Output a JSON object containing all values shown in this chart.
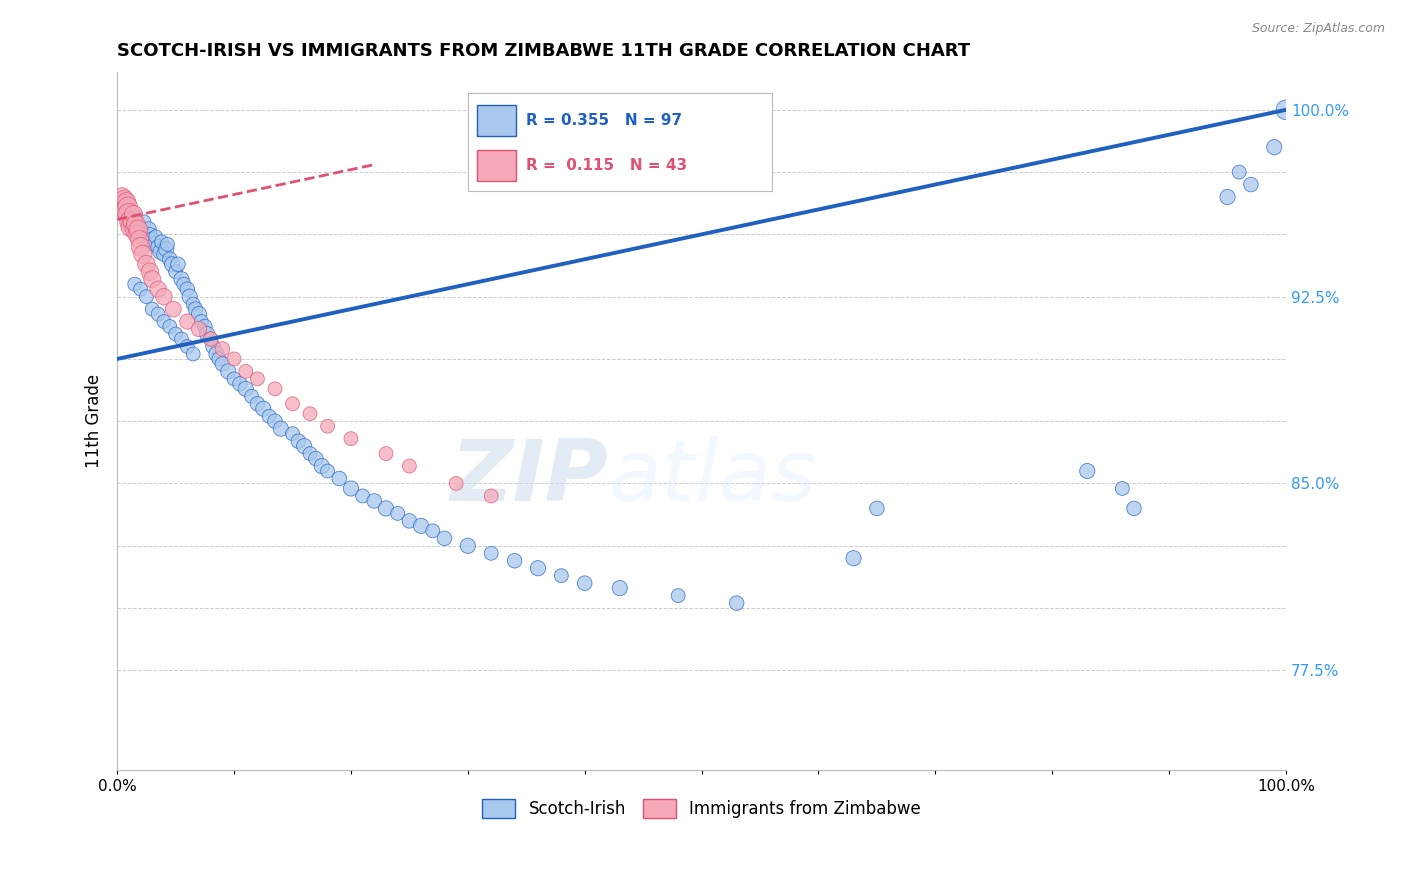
{
  "title": "SCOTCH-IRISH VS IMMIGRANTS FROM ZIMBABWE 11TH GRADE CORRELATION CHART",
  "ylabel": "11th Grade",
  "source": "Source: ZipAtlas.com",
  "xlim": [
    0.0,
    1.0
  ],
  "ylim": [
    0.735,
    1.015
  ],
  "yticks": [
    0.775,
    0.8,
    0.825,
    0.85,
    0.875,
    0.9,
    0.925,
    0.95,
    0.975,
    1.0
  ],
  "ytick_labels": [
    "77.5%",
    "",
    "",
    "85.0%",
    "",
    "",
    "92.5%",
    "",
    "",
    "100.0%"
  ],
  "xticks": [
    0.0,
    0.1,
    0.2,
    0.3,
    0.4,
    0.5,
    0.6,
    0.7,
    0.8,
    0.9,
    1.0
  ],
  "xtick_labels": [
    "0.0%",
    "",
    "",
    "",
    "",
    "",
    "",
    "",
    "",
    "",
    "100.0%"
  ],
  "blue_R": 0.355,
  "blue_N": 97,
  "pink_R": 0.115,
  "pink_N": 43,
  "legend_label_blue": "Scotch-Irish",
  "legend_label_pink": "Immigrants from Zimbabwe",
  "blue_color": "#A8C8EE",
  "pink_color": "#F4A8B8",
  "blue_line_color": "#2060C0",
  "pink_line_color": "#E05070",
  "watermark_zip": "ZIP",
  "watermark_atlas": "atlas",
  "blue_line_x": [
    0.0,
    1.0
  ],
  "blue_line_y": [
    0.9,
    1.0
  ],
  "pink_line_x": [
    0.0,
    0.22
  ],
  "pink_line_y": [
    0.956,
    0.978
  ],
  "blue_x": [
    0.005,
    0.01,
    0.013,
    0.015,
    0.016,
    0.018,
    0.02,
    0.022,
    0.023,
    0.025,
    0.027,
    0.028,
    0.03,
    0.032,
    0.033,
    0.035,
    0.037,
    0.038,
    0.04,
    0.042,
    0.043,
    0.045,
    0.047,
    0.05,
    0.052,
    0.055,
    0.057,
    0.06,
    0.062,
    0.065,
    0.067,
    0.07,
    0.072,
    0.075,
    0.077,
    0.08,
    0.082,
    0.085,
    0.087,
    0.09,
    0.095,
    0.1,
    0.105,
    0.11,
    0.115,
    0.12,
    0.125,
    0.13,
    0.135,
    0.14,
    0.15,
    0.155,
    0.16,
    0.165,
    0.17,
    0.175,
    0.18,
    0.19,
    0.2,
    0.21,
    0.22,
    0.23,
    0.24,
    0.25,
    0.26,
    0.27,
    0.28,
    0.3,
    0.32,
    0.34,
    0.36,
    0.38,
    0.4,
    0.43,
    0.48,
    0.53,
    0.63,
    0.65,
    0.83,
    0.86,
    0.87,
    0.95,
    0.96,
    0.97,
    0.99,
    1.0,
    0.015,
    0.02,
    0.025,
    0.03,
    0.035,
    0.04,
    0.045,
    0.05,
    0.055,
    0.06,
    0.065
  ],
  "blue_y": [
    0.96,
    0.955,
    0.958,
    0.955,
    0.957,
    0.953,
    0.952,
    0.95,
    0.955,
    0.948,
    0.952,
    0.95,
    0.948,
    0.946,
    0.949,
    0.945,
    0.943,
    0.947,
    0.942,
    0.944,
    0.946,
    0.94,
    0.938,
    0.935,
    0.938,
    0.932,
    0.93,
    0.928,
    0.925,
    0.922,
    0.92,
    0.918,
    0.915,
    0.913,
    0.91,
    0.908,
    0.905,
    0.902,
    0.9,
    0.898,
    0.895,
    0.892,
    0.89,
    0.888,
    0.885,
    0.882,
    0.88,
    0.877,
    0.875,
    0.872,
    0.87,
    0.867,
    0.865,
    0.862,
    0.86,
    0.857,
    0.855,
    0.852,
    0.848,
    0.845,
    0.843,
    0.84,
    0.838,
    0.835,
    0.833,
    0.831,
    0.828,
    0.825,
    0.822,
    0.819,
    0.816,
    0.813,
    0.81,
    0.808,
    0.805,
    0.802,
    0.82,
    0.84,
    0.855,
    0.848,
    0.84,
    0.965,
    0.975,
    0.97,
    0.985,
    1.0,
    0.93,
    0.928,
    0.925,
    0.92,
    0.918,
    0.915,
    0.913,
    0.91,
    0.908,
    0.905,
    0.902
  ],
  "blue_sizes": [
    120,
    100,
    110,
    120,
    100,
    110,
    130,
    120,
    100,
    110,
    120,
    100,
    110,
    120,
    100,
    110,
    120,
    100,
    110,
    120,
    100,
    110,
    120,
    100,
    110,
    120,
    100,
    110,
    120,
    100,
    110,
    120,
    100,
    110,
    120,
    100,
    110,
    120,
    100,
    110,
    120,
    100,
    110,
    120,
    100,
    110,
    120,
    100,
    110,
    120,
    100,
    110,
    120,
    100,
    110,
    120,
    100,
    110,
    120,
    100,
    110,
    120,
    100,
    110,
    120,
    100,
    110,
    120,
    100,
    110,
    120,
    100,
    110,
    120,
    100,
    110,
    120,
    110,
    120,
    100,
    110,
    120,
    100,
    110,
    120,
    200,
    100,
    100,
    100,
    100,
    100,
    100,
    100,
    100,
    100,
    100,
    100
  ],
  "pink_x": [
    0.001,
    0.002,
    0.003,
    0.004,
    0.005,
    0.006,
    0.007,
    0.008,
    0.009,
    0.01,
    0.011,
    0.012,
    0.013,
    0.014,
    0.015,
    0.016,
    0.017,
    0.018,
    0.019,
    0.02,
    0.022,
    0.025,
    0.028,
    0.03,
    0.035,
    0.04,
    0.048,
    0.06,
    0.07,
    0.08,
    0.09,
    0.1,
    0.11,
    0.12,
    0.135,
    0.15,
    0.165,
    0.18,
    0.2,
    0.23,
    0.25,
    0.29,
    0.32
  ],
  "pink_y": [
    0.961,
    0.963,
    0.96,
    0.965,
    0.962,
    0.964,
    0.96,
    0.963,
    0.961,
    0.958,
    0.955,
    0.953,
    0.955,
    0.958,
    0.952,
    0.954,
    0.95,
    0.952,
    0.948,
    0.945,
    0.942,
    0.938,
    0.935,
    0.932,
    0.928,
    0.925,
    0.92,
    0.915,
    0.912,
    0.908,
    0.904,
    0.9,
    0.895,
    0.892,
    0.888,
    0.882,
    0.878,
    0.873,
    0.868,
    0.862,
    0.857,
    0.85,
    0.845
  ],
  "pink_sizes": [
    200,
    180,
    200,
    180,
    200,
    180,
    200,
    180,
    200,
    250,
    220,
    210,
    180,
    170,
    190,
    180,
    170,
    180,
    170,
    180,
    170,
    160,
    160,
    150,
    140,
    140,
    130,
    120,
    120,
    110,
    110,
    100,
    100,
    100,
    100,
    100,
    100,
    100,
    100,
    100,
    100,
    100,
    100
  ]
}
